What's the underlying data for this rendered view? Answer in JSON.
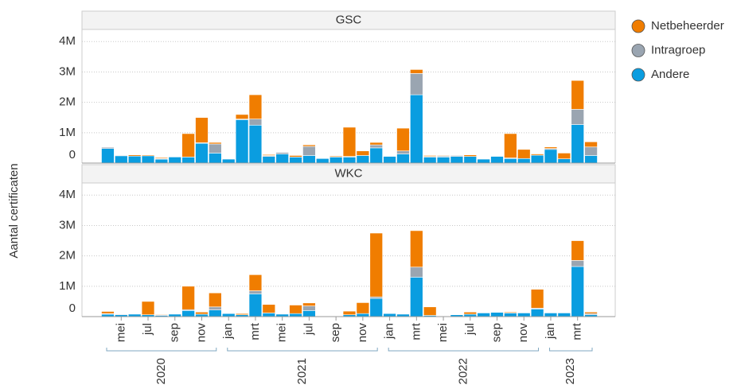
{
  "chart_data": {
    "type": "bar",
    "stacked": true,
    "y_label": "Aantal certificaten",
    "categories": [
      null,
      "mei",
      null,
      "jul",
      null,
      "sep",
      null,
      "nov",
      null,
      "jan",
      null,
      "mrt",
      null,
      "mei",
      null,
      "jul",
      null,
      "sep",
      null,
      "nov",
      null,
      "jan",
      null,
      "mrt",
      null,
      "mei",
      null,
      "jul",
      null,
      "sep",
      null,
      "nov",
      null,
      "jan",
      null,
      "mrt",
      null
    ],
    "x_groups": [
      {
        "label": "2020",
        "count": 9
      },
      {
        "label": "2021",
        "count": 12
      },
      {
        "label": "2022",
        "count": 12
      },
      {
        "label": "2023",
        "count": 4
      }
    ],
    "ylim": [
      0,
      4400000
    ],
    "yticks": [
      0,
      {
        "value": 1000000,
        "label": "1M"
      },
      {
        "value": 2000000,
        "label": "2M"
      },
      {
        "value": 3000000,
        "label": "3M"
      },
      {
        "value": 4000000,
        "label": "4M"
      }
    ],
    "grid": true,
    "series": [
      {
        "name": "Netbeheerder",
        "color": "#f07d00"
      },
      {
        "name": "Intragroep",
        "color": "#9aa5b1"
      },
      {
        "name": "Andere",
        "color": "#0a9de0"
      }
    ],
    "facets": [
      {
        "title": "GSC",
        "series": [
          {
            "values": [
              0,
              0,
              40000,
              30000,
              30000,
              0,
              770000,
              830000,
              50000,
              0,
              150000,
              800000,
              30000,
              0,
              50000,
              50000,
              0,
              30000,
              960000,
              150000,
              80000,
              0,
              750000,
              130000,
              30000,
              20000,
              0,
              50000,
              0,
              0,
              800000,
              300000,
              40000,
              50000,
              190000,
              950000,
              170000
            ]
          },
          {
            "values": [
              40000,
              20000,
              0,
              0,
              20000,
              0,
              0,
              20000,
              300000,
              0,
              20000,
              200000,
              30000,
              50000,
              0,
              300000,
              0,
              0,
              20000,
              0,
              100000,
              0,
              100000,
              700000,
              20000,
              30000,
              30000,
              0,
              0,
              0,
              20000,
              0,
              0,
              30000,
              0,
              500000,
              280000
            ]
          },
          {
            "values": [
              480000,
              240000,
              230000,
              240000,
              130000,
              200000,
              200000,
              650000,
              330000,
              130000,
              1430000,
              1250000,
              220000,
              300000,
              200000,
              250000,
              150000,
              200000,
              200000,
              250000,
              500000,
              220000,
              300000,
              2250000,
              200000,
              200000,
              220000,
              220000,
              130000,
              220000,
              150000,
              150000,
              260000,
              450000,
              140000,
              1270000,
              250000
            ]
          }
        ]
      },
      {
        "title": "WKC",
        "series": [
          {
            "values": [
              70000,
              0,
              0,
              440000,
              20000,
              0,
              770000,
              70000,
              460000,
              0,
              40000,
              530000,
              280000,
              0,
              280000,
              100000,
              0,
              0,
              120000,
              360000,
              2100000,
              0,
              0,
              1200000,
              280000,
              0,
              0,
              70000,
              0,
              0,
              30000,
              0,
              620000,
              0,
              0,
              650000,
              50000
            ]
          },
          {
            "values": [
              20000,
              20000,
              0,
              0,
              20000,
              0,
              30000,
              0,
              100000,
              0,
              0,
              100000,
              0,
              0,
              0,
              150000,
              0,
              0,
              0,
              0,
              50000,
              0,
              0,
              330000,
              0,
              0,
              0,
              0,
              0,
              0,
              0,
              0,
              30000,
              0,
              0,
              200000,
              40000
            ]
          },
          {
            "values": [
              80000,
              60000,
              80000,
              60000,
              40000,
              80000,
              200000,
              80000,
              220000,
              100000,
              60000,
              750000,
              120000,
              80000,
              100000,
              200000,
              20000,
              20000,
              60000,
              100000,
              600000,
              100000,
              80000,
              1300000,
              40000,
              0,
              60000,
              80000,
              120000,
              140000,
              120000,
              120000,
              250000,
              120000,
              120000,
              1650000,
              60000
            ]
          }
        ]
      }
    ]
  }
}
